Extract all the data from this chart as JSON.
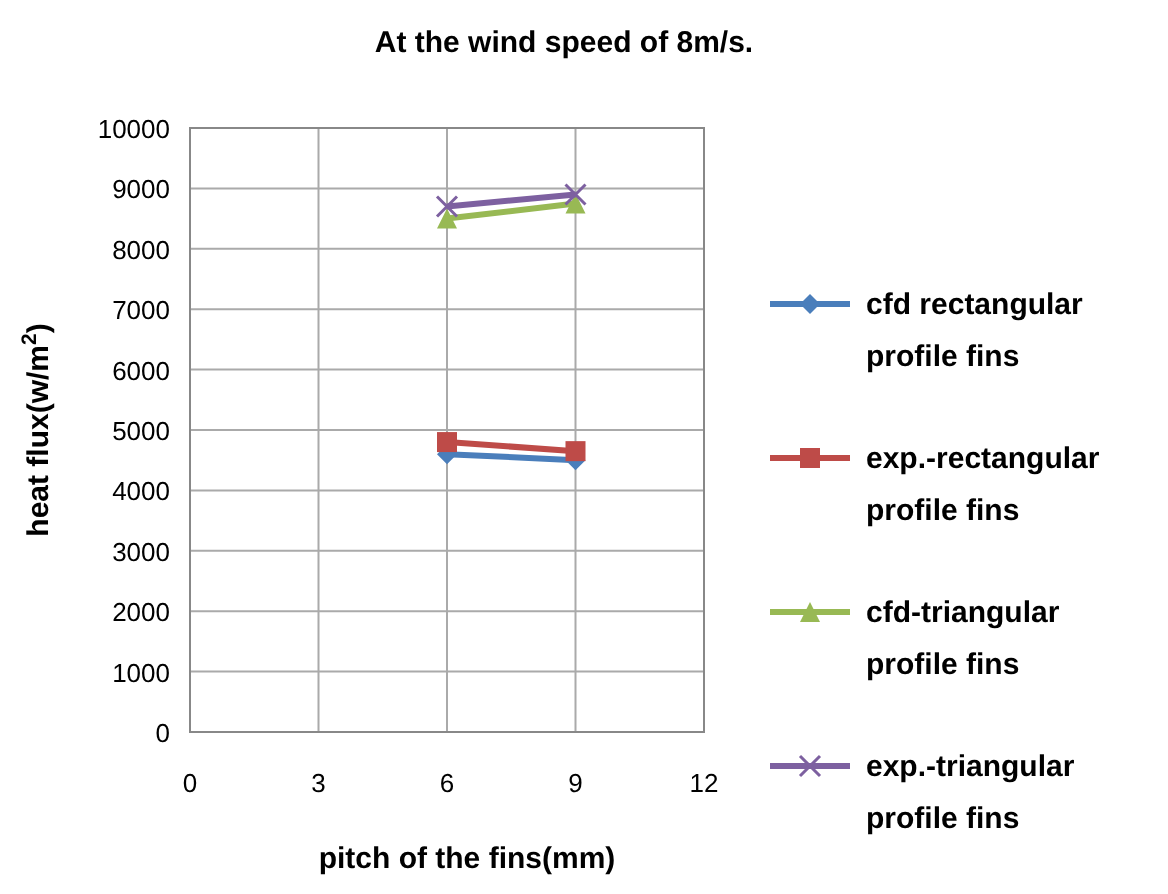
{
  "chart_data": {
    "type": "line",
    "title": "At the wind speed of 8m/s.",
    "xlabel": "pitch of the fins(mm)",
    "ylabel": "heat flux(w/m$^{2}$)",
    "x": [
      6,
      9
    ],
    "xlim": [
      0,
      12
    ],
    "xticks": [
      0,
      3,
      6,
      9,
      12
    ],
    "ylim": [
      0,
      10000
    ],
    "yticks": [
      0,
      1000,
      2000,
      3000,
      4000,
      5000,
      6000,
      7000,
      8000,
      9000,
      10000
    ],
    "grid": true,
    "legend": "right",
    "line_style": "solid",
    "series": [
      {
        "name": "cfd rectangular profile fins",
        "color": "#4a7ebb",
        "marker": "diamond",
        "values": [
          4600,
          4500
        ]
      },
      {
        "name": "exp.-rectangular profile fins",
        "color": "#be4b48",
        "marker": "square",
        "values": [
          4800,
          4650
        ]
      },
      {
        "name": "cfd-triangular profile fins",
        "color": "#98b954",
        "marker": "triangle",
        "values": [
          8500,
          8750
        ]
      },
      {
        "name": "exp.-triangular profile fins",
        "color": "#7d60a0",
        "marker": "cross",
        "values": [
          8700,
          8900
        ]
      }
    ]
  }
}
